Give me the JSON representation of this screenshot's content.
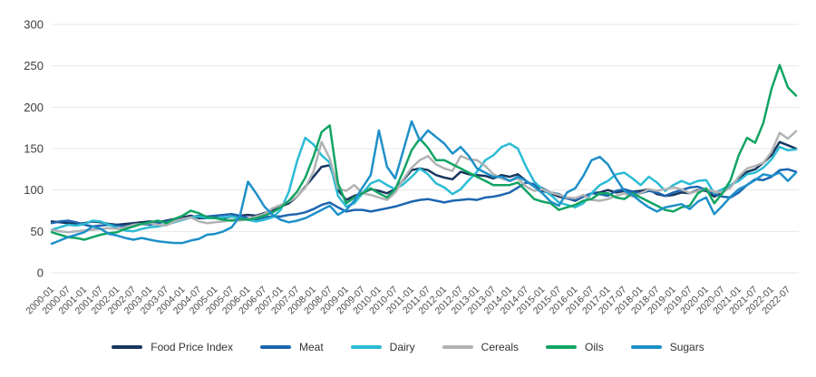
{
  "chart_data": {
    "type": "line",
    "title": "",
    "xlabel": "",
    "ylabel": "",
    "ylim": [
      0,
      300
    ],
    "y_ticks": [
      0,
      50,
      100,
      150,
      200,
      250,
      300
    ],
    "grid": "horizontal",
    "legend_position": "bottom",
    "x_tick_labels": [
      "2000-01",
      "2000-07",
      "2001-01",
      "2001-07",
      "2002-01",
      "2002-07",
      "2003-01",
      "2003-07",
      "2004-01",
      "2004-07",
      "2005-01",
      "2005-07",
      "2006-01",
      "2006-07",
      "2007-01",
      "2007-07",
      "2008-01",
      "2008-07",
      "2009-01",
      "2009-07",
      "2010-01",
      "2010-07",
      "2011-01",
      "2011-07",
      "2012-01",
      "2012-07",
      "2013-01",
      "2013-07",
      "2014-01",
      "2014-07",
      "2015-01",
      "2015-07",
      "2016-01",
      "2016-07",
      "2017-01",
      "2017-07",
      "2018-01",
      "2018-07",
      "2019-01",
      "2019-07",
      "2020-01",
      "2020-07",
      "2021-01",
      "2021-07",
      "2022-01",
      "2022-07"
    ],
    "series_x": {
      "start": "2000-01",
      "step_months": 3,
      "count": 92
    },
    "series": [
      {
        "name": "Food Price Index",
        "color": "#17365f",
        "values": [
          62,
          61,
          60,
          59,
          60,
          62,
          61,
          59,
          58,
          59,
          60,
          61,
          62,
          61,
          63,
          65,
          67,
          69,
          66,
          66,
          67,
          66,
          68,
          69,
          70,
          69,
          72,
          76,
          80,
          84,
          92,
          104,
          116,
          128,
          130,
          100,
          88,
          93,
          96,
          101,
          99,
          96,
          101,
          112,
          124,
          126,
          124,
          118,
          115,
          113,
          122,
          119,
          118,
          117,
          114,
          118,
          116,
          119,
          111,
          104,
          99,
          96,
          92,
          90,
          87,
          92,
          96,
          97,
          100,
          97,
          99,
          98,
          99,
          101,
          95,
          93,
          94,
          97,
          96,
          100,
          99,
          92,
          97,
          105,
          114,
          122,
          125,
          133,
          142,
          158,
          154,
          150
        ]
      },
      {
        "name": "Meat",
        "color": "#1d66b0",
        "values": [
          60,
          62,
          63,
          61,
          58,
          56,
          57,
          58,
          57,
          56,
          58,
          59,
          58,
          60,
          62,
          64,
          64,
          67,
          69,
          68,
          69,
          70,
          71,
          69,
          66,
          64,
          67,
          68,
          68,
          70,
          71,
          73,
          77,
          82,
          85,
          79,
          74,
          76,
          76,
          74,
          76,
          78,
          80,
          83,
          86,
          88,
          89,
          87,
          85,
          87,
          88,
          89,
          88,
          91,
          92,
          94,
          97,
          103,
          109,
          107,
          102,
          97,
          95,
          90,
          88,
          92,
          96,
          95,
          93,
          99,
          101,
          98,
          96,
          99,
          97,
          93,
          97,
          100,
          103,
          104,
          100,
          95,
          92,
          91,
          97,
          106,
          113,
          112,
          116,
          124,
          125,
          122
        ]
      },
      {
        "name": "Dairy",
        "color": "#2bbcd4",
        "values": [
          52,
          55,
          58,
          57,
          59,
          63,
          62,
          58,
          54,
          51,
          50,
          53,
          55,
          56,
          58,
          61,
          64,
          67,
          68,
          66,
          66,
          67,
          68,
          66,
          64,
          62,
          64,
          67,
          76,
          98,
          135,
          163,
          155,
          142,
          133,
          93,
          80,
          84,
          96,
          108,
          112,
          106,
          101,
          107,
          116,
          126,
          119,
          108,
          103,
          95,
          101,
          112,
          122,
          136,
          142,
          152,
          156,
          150,
          128,
          110,
          101,
          94,
          85,
          82,
          79,
          84,
          96,
          106,
          111,
          119,
          121,
          114,
          106,
          116,
          109,
          99,
          106,
          111,
          107,
          111,
          112,
          96,
          101,
          106,
          111,
          119,
          121,
          127,
          137,
          152,
          148,
          149
        ]
      },
      {
        "name": "Cereals",
        "color": "#b1b2b4",
        "values": [
          52,
          50,
          49,
          50,
          51,
          52,
          53,
          54,
          53,
          55,
          58,
          59,
          60,
          58,
          57,
          62,
          65,
          67,
          62,
          60,
          61,
          62,
          64,
          63,
          65,
          68,
          71,
          78,
          82,
          86,
          92,
          103,
          122,
          158,
          138,
          102,
          99,
          106,
          96,
          94,
          91,
          88,
          97,
          113,
          127,
          136,
          141,
          131,
          126,
          123,
          141,
          137,
          136,
          129,
          119,
          114,
          111,
          114,
          104,
          99,
          101,
          97,
          94,
          91,
          90,
          94,
          88,
          87,
          89,
          93,
          96,
          92,
          96,
          101,
          99,
          101,
          103,
          101,
          96,
          99,
          101,
          98,
          97,
          103,
          116,
          126,
          129,
          133,
          146,
          169,
          162,
          171
        ]
      },
      {
        "name": "Oils",
        "color": "#12a463",
        "values": [
          49,
          46,
          43,
          42,
          40,
          43,
          46,
          48,
          49,
          53,
          56,
          59,
          61,
          63,
          60,
          65,
          69,
          75,
          72,
          67,
          66,
          64,
          63,
          65,
          64,
          66,
          69,
          73,
          79,
          87,
          98,
          115,
          140,
          170,
          178,
          108,
          84,
          91,
          96,
          102,
          96,
          91,
          101,
          123,
          148,
          162,
          151,
          136,
          136,
          131,
          126,
          121,
          116,
          111,
          106,
          106,
          106,
          109,
          99,
          89,
          86,
          84,
          76,
          79,
          82,
          87,
          89,
          96,
          96,
          91,
          89,
          96,
          91,
          86,
          81,
          76,
          74,
          79,
          81,
          96,
          102,
          84,
          96,
          112,
          142,
          163,
          157,
          181,
          222,
          251,
          224,
          214
        ]
      },
      {
        "name": "Sugars",
        "color": "#1e90c9",
        "values": [
          35,
          39,
          43,
          46,
          49,
          56,
          53,
          47,
          45,
          42,
          40,
          42,
          40,
          38,
          37,
          36,
          36,
          39,
          41,
          46,
          47,
          50,
          55,
          68,
          110,
          96,
          80,
          70,
          64,
          61,
          63,
          66,
          71,
          76,
          81,
          70,
          76,
          87,
          103,
          118,
          172,
          128,
          114,
          148,
          183,
          160,
          172,
          164,
          156,
          144,
          152,
          141,
          126,
          121,
          116,
          116,
          111,
          116,
          111,
          104,
          96,
          86,
          81,
          97,
          102,
          117,
          136,
          140,
          131,
          114,
          99,
          94,
          86,
          79,
          74,
          79,
          81,
          83,
          77,
          86,
          91,
          71,
          81,
          92,
          101,
          106,
          112,
          119,
          117,
          121,
          111,
          121
        ]
      }
    ]
  }
}
